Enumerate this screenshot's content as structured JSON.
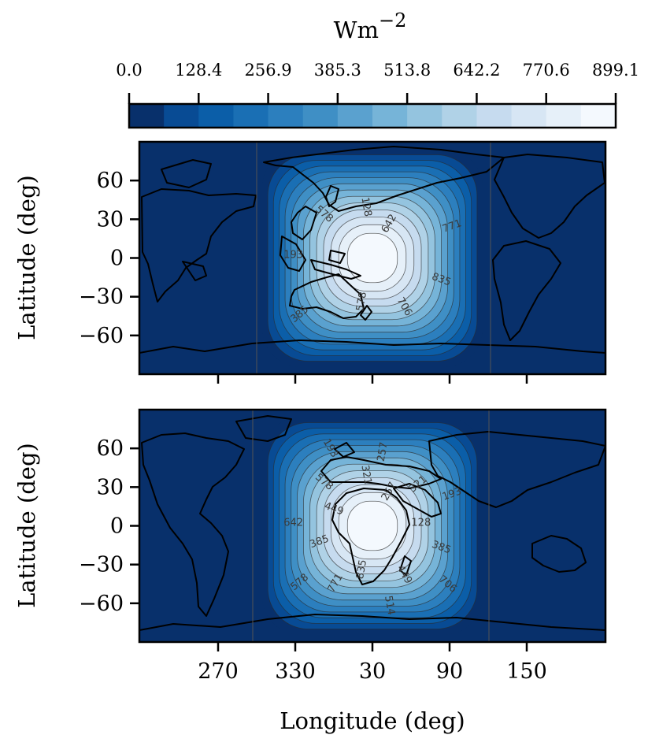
{
  "chart_data": {
    "type": "heatmap",
    "subtype": "filled-contour-map",
    "colormap": "Blues_r",
    "colorbar": {
      "title": "Wm",
      "title_exponent": "−2",
      "placement": "top",
      "range": [
        0.0,
        899.1
      ],
      "ticks": [
        "0.0",
        "128.4",
        "256.9",
        "385.3",
        "513.8",
        "642.2",
        "770.6",
        "899.1"
      ],
      "levels": 14,
      "colors": [
        "#08306b",
        "#084b94",
        "#0b5ea8",
        "#1a6fb4",
        "#2c7fbe",
        "#3f8fc5",
        "#5aa1cf",
        "#76b4d8",
        "#94c4df",
        "#b0d2e7",
        "#c6dbef",
        "#d7e6f4",
        "#e6f0f9",
        "#f4f9fe"
      ]
    },
    "panels": [
      {
        "id": "top",
        "ylabel": "Latitude (deg)",
        "yticks": [
          "60",
          "30",
          "0",
          "−30",
          "−60"
        ],
        "ytick_values": [
          60,
          30,
          0,
          -30,
          -60
        ],
        "xlim": [
          210,
          390
        ],
        "ylim": [
          -90,
          90
        ],
        "peak": {
          "lon": 30,
          "lat": 0
        },
        "contour_labels": [
          "642",
          "771",
          "835",
          "706",
          "578",
          "385",
          "193",
          "578",
          "128"
        ]
      },
      {
        "id": "bottom",
        "ylabel": "Latitude (deg)",
        "yticks": [
          "60",
          "30",
          "0",
          "−30",
          "−60"
        ],
        "ytick_values": [
          60,
          30,
          0,
          -30,
          -60
        ],
        "xlabel": "Longitude (deg)",
        "xticks": [
          "270",
          "330",
          "30",
          "90",
          "150"
        ],
        "xtick_values": [
          270,
          330,
          390,
          450,
          510
        ],
        "xlim": [
          210,
          390
        ],
        "ylim": [
          -90,
          90
        ],
        "peak": {
          "lon": 30,
          "lat": 0
        },
        "contour_labels": [
          "257",
          "321",
          "193",
          "128",
          "385",
          "706",
          "449",
          "514",
          "835",
          "771",
          "578",
          "385",
          "642",
          "449",
          "578",
          "193",
          "321",
          "257"
        ]
      }
    ]
  }
}
